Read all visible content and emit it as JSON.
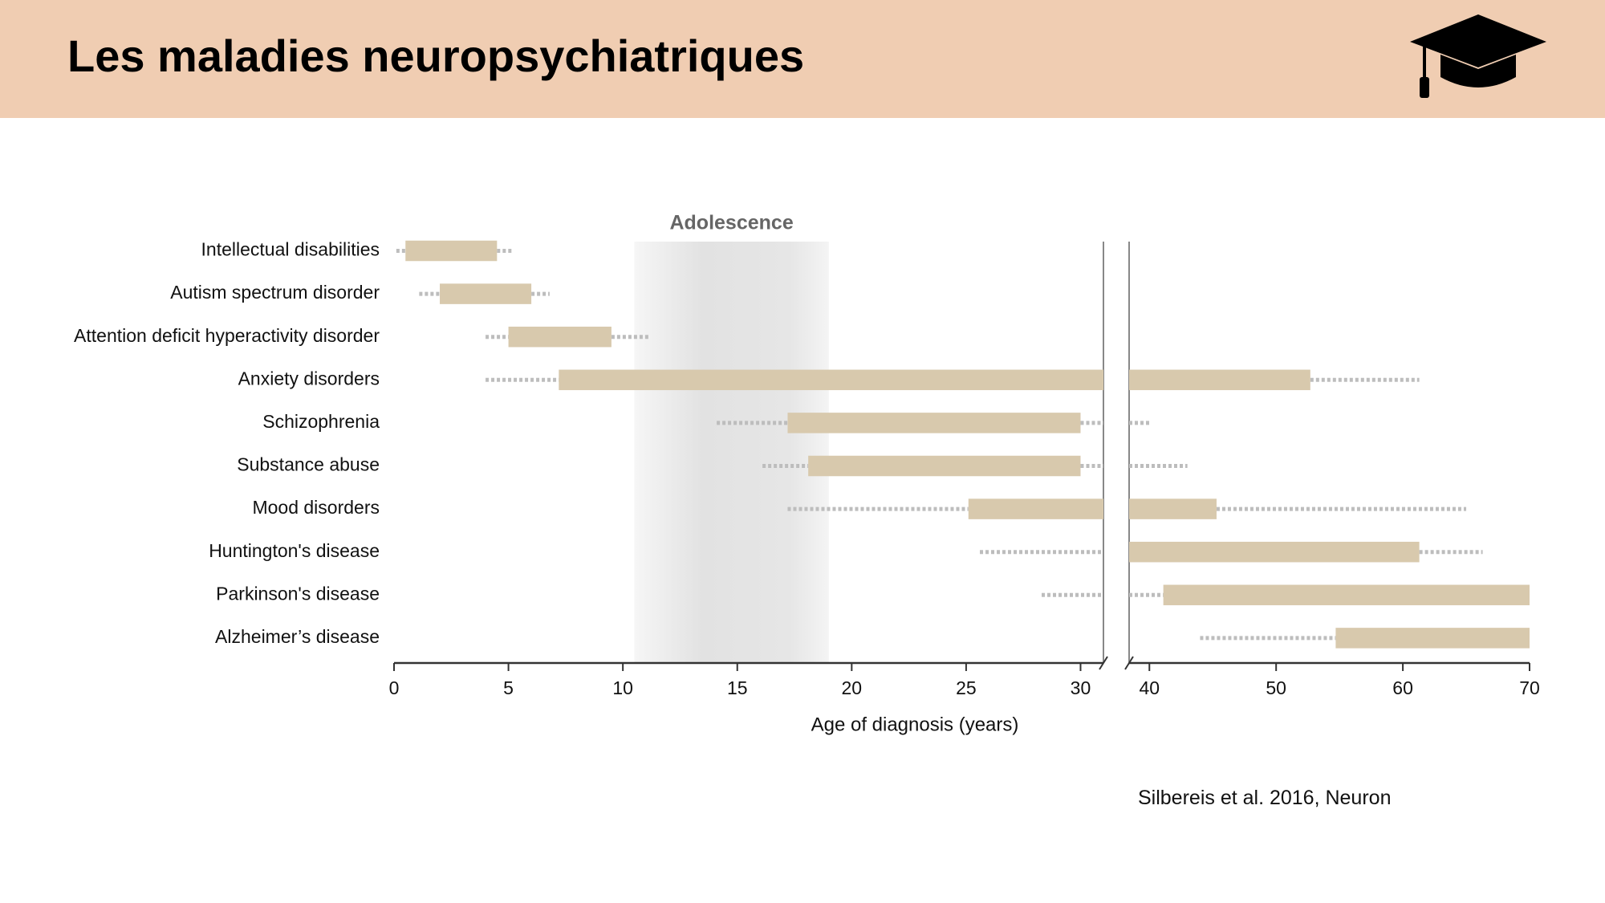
{
  "title": "Les maladies neuropsychiatriques",
  "citation": "Silbereis et al.  2016, Neuron",
  "chart_data": {
    "type": "range",
    "xlabel": "Age of diagnosis (years)",
    "categories": [
      "Intellectual disabilities",
      "Autism spectrum disorder",
      "Attention deficit hyperactivity disorder",
      "Anxiety disorders",
      "Schizophrenia",
      "Substance abuse",
      "Mood disorders",
      "Huntington's disease",
      "Parkinson's disease",
      "Alzheimer’s disease"
    ],
    "whisker_start": [
      0.1,
      1.1,
      4,
      4,
      14.1,
      16.1,
      17.2,
      25.6,
      28.3,
      44
    ],
    "bar_start": [
      0.5,
      2,
      5,
      7.2,
      17.2,
      18.1,
      25.1,
      35,
      41.1,
      54.7
    ],
    "bar_end": [
      4.5,
      6,
      9.5,
      52.7,
      30,
      30,
      45.3,
      61.3,
      70,
      70
    ],
    "whisker_end": [
      5.2,
      6.8,
      11.2,
      61.3,
      40,
      43,
      65,
      66.3,
      70,
      70
    ],
    "bar_color": "#d8c9ad",
    "whisker_color": "#bdbdbd",
    "shaded_region": {
      "label": "Adolescence",
      "range": [
        10.5,
        19
      ]
    },
    "xlim": [
      0,
      31
    ],
    "xticks": [
      0,
      5,
      10,
      15,
      20,
      25,
      30
    ],
    "xlim_right": [
      38.4,
      70
    ],
    "xticks_right": [
      40,
      50,
      60,
      70
    ]
  }
}
